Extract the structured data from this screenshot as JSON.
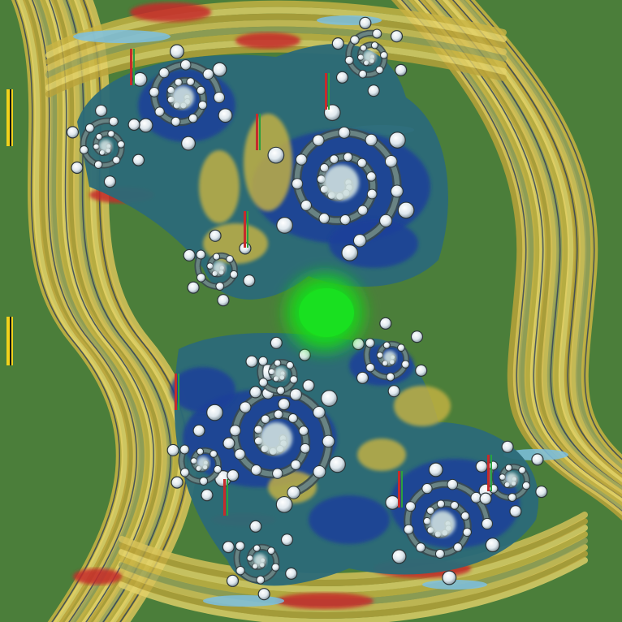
{
  "image": {
    "palette": {
      "background": "#4b7e3a",
      "gold": "#c9b443",
      "gold_light": "#e4d26a",
      "deep_blue": "#1d3f9a",
      "teal": "#2b6a78",
      "red": "#c62b2b",
      "pearl": "#e6ecf0",
      "center_green": "#19e020"
    }
  }
}
